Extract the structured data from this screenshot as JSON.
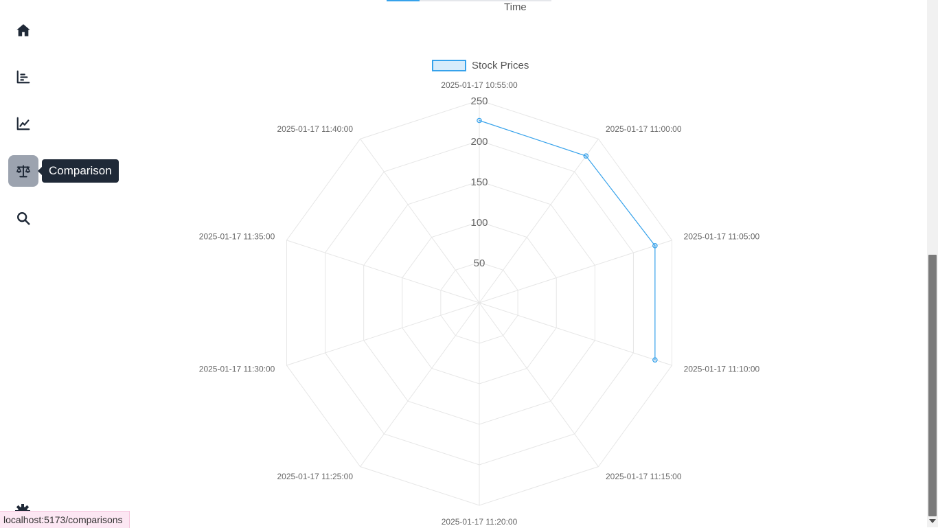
{
  "sidebar": {
    "items": [
      {
        "name": "home",
        "icon": "home-icon"
      },
      {
        "name": "bar-chart",
        "icon": "bar-chart-icon"
      },
      {
        "name": "line-chart",
        "icon": "line-chart-icon"
      },
      {
        "name": "comparison",
        "icon": "scale-icon",
        "active": true
      },
      {
        "name": "search",
        "icon": "search-icon"
      }
    ],
    "settings_icon": "gear-icon",
    "tooltip": "Comparison"
  },
  "top_chart": {
    "xlabel": "Time"
  },
  "chart_data": {
    "type": "radar",
    "legend": "Stock Prices",
    "legend_position": "top",
    "categories": [
      "2025-01-17 10:55:00",
      "2025-01-17 11:00:00",
      "2025-01-17 11:05:00",
      "2025-01-17 11:10:00",
      "2025-01-17 11:15:00",
      "2025-01-17 11:20:00",
      "2025-01-17 11:25:00",
      "2025-01-17 11:30:00",
      "2025-01-17 11:35:00",
      "2025-01-17 11:40:00"
    ],
    "series": [
      {
        "name": "Stock Prices",
        "values": [
          225,
          224,
          228,
          228,
          null,
          null,
          null,
          null,
          null,
          null
        ]
      }
    ],
    "r_ticks": [
      50,
      100,
      150,
      200,
      250
    ],
    "rlim": [
      0,
      250
    ],
    "grid": true,
    "colors": {
      "line": "#36a2eb",
      "fill": "rgba(54,162,235,0.2)",
      "grid": "#e6e6e6"
    }
  },
  "status_bar": {
    "url": "localhost:5173/comparisons"
  }
}
